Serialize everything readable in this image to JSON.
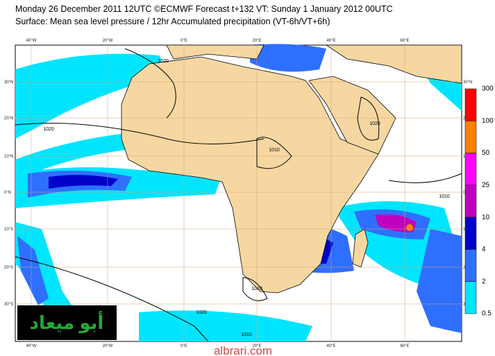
{
  "header": {
    "line1": "Monday 26 December 2011 12UTC ©ECMWF Forecast t+132 VT: Sunday 1 January 2012 00UTC",
    "line2": "Surface: Mean sea level pressure / 12hr Accumulated precipitation (VT-6h/VT+6h)"
  },
  "map": {
    "longitude_labels": [
      "40°W",
      "20°W",
      "0°E",
      "20°E",
      "40°E",
      "60°E"
    ],
    "latitude_labels": [
      "30°N",
      "20°N",
      "10°N",
      "0°N",
      "10°S",
      "20°S",
      "30°S"
    ],
    "isobar_labels": [
      "1020",
      "1020",
      "1010",
      "1020",
      "1010",
      "1010",
      "1020",
      "1010"
    ]
  },
  "legend": {
    "labels": [
      "300",
      "100",
      "50",
      "25",
      "10",
      "4",
      "2",
      "0.5"
    ],
    "colors": [
      "#ff0000",
      "#ff8000",
      "#ff00ff",
      "#c000c0",
      "#0000c8",
      "#2f6fff",
      "#00e5ff"
    ]
  },
  "watermark": {
    "arabic": "أبو ميعاد",
    "site": "albrari.com"
  }
}
